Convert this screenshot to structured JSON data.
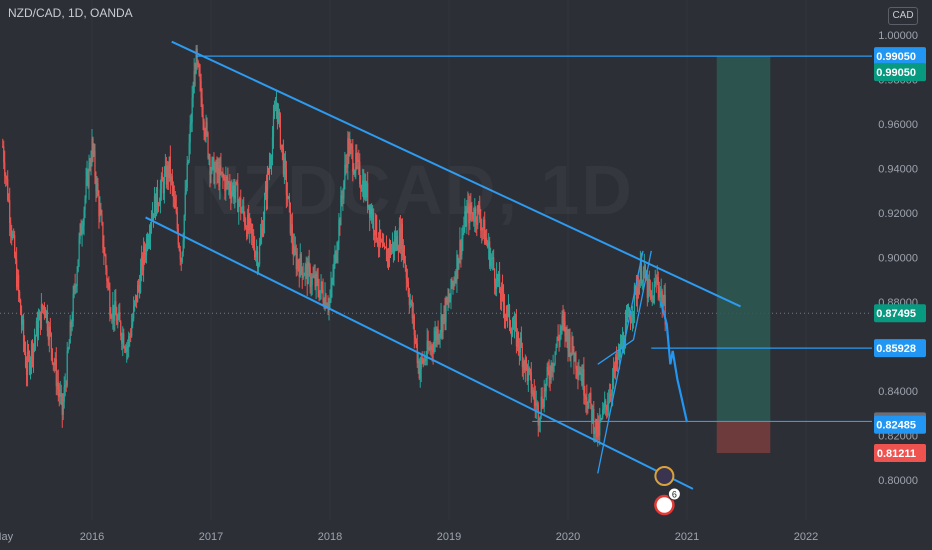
{
  "header": {
    "symbol": "NZD/CAD, 1D, OANDA",
    "currency_button": "CAD"
  },
  "watermark": "NZDCAD, 1D",
  "colors": {
    "background": "#2c2f36",
    "up": "#26a69a",
    "down": "#ef5350",
    "trend": "#2d9bf0",
    "target_zone": "#2e5954",
    "stop_zone": "#7a3d3d",
    "projection": "#2196f3"
  },
  "chart_data": {
    "type": "candlestick",
    "title": "NZD/CAD, 1D, OANDA",
    "ylim": [
      0.795,
      1.005
    ],
    "x_ticks": [
      "May",
      "2016",
      "2017",
      "2018",
      "2019",
      "2020",
      "2021",
      "2022"
    ],
    "y_ticks": [
      "1.00000",
      "0.98000",
      "0.96000",
      "0.94000",
      "0.92000",
      "0.90000",
      "0.88000",
      "0.86000",
      "0.84000",
      "0.82000",
      "0.80000"
    ],
    "price_path": [
      {
        "t": 2015.25,
        "p": 0.95
      },
      {
        "t": 2015.45,
        "p": 0.85
      },
      {
        "t": 2015.6,
        "p": 0.88
      },
      {
        "t": 2015.75,
        "p": 0.83
      },
      {
        "t": 2015.9,
        "p": 0.91
      },
      {
        "t": 2016.0,
        "p": 0.95
      },
      {
        "t": 2016.15,
        "p": 0.88
      },
      {
        "t": 2016.3,
        "p": 0.86
      },
      {
        "t": 2016.5,
        "p": 0.92
      },
      {
        "t": 2016.65,
        "p": 0.94
      },
      {
        "t": 2016.75,
        "p": 0.9
      },
      {
        "t": 2016.87,
        "p": 0.99
      },
      {
        "t": 2017.0,
        "p": 0.94
      },
      {
        "t": 2017.2,
        "p": 0.93
      },
      {
        "t": 2017.4,
        "p": 0.9
      },
      {
        "t": 2017.55,
        "p": 0.97
      },
      {
        "t": 2017.7,
        "p": 0.9
      },
      {
        "t": 2017.85,
        "p": 0.89
      },
      {
        "t": 2018.0,
        "p": 0.88
      },
      {
        "t": 2018.15,
        "p": 0.95
      },
      {
        "t": 2018.3,
        "p": 0.93
      },
      {
        "t": 2018.45,
        "p": 0.9
      },
      {
        "t": 2018.6,
        "p": 0.91
      },
      {
        "t": 2018.75,
        "p": 0.85
      },
      {
        "t": 2018.85,
        "p": 0.86
      },
      {
        "t": 2019.0,
        "p": 0.88
      },
      {
        "t": 2019.15,
        "p": 0.92
      },
      {
        "t": 2019.25,
        "p": 0.92
      },
      {
        "t": 2019.45,
        "p": 0.88
      },
      {
        "t": 2019.6,
        "p": 0.86
      },
      {
        "t": 2019.75,
        "p": 0.83
      },
      {
        "t": 2019.95,
        "p": 0.87
      },
      {
        "t": 2020.1,
        "p": 0.85
      },
      {
        "t": 2020.25,
        "p": 0.82
      },
      {
        "t": 2020.4,
        "p": 0.85
      },
      {
        "t": 2020.55,
        "p": 0.88
      },
      {
        "t": 2020.62,
        "p": 0.895
      },
      {
        "t": 2020.7,
        "p": 0.88
      },
      {
        "t": 2020.75,
        "p": 0.89
      },
      {
        "t": 2020.82,
        "p": 0.875
      }
    ],
    "projection": [
      {
        "t": 2020.78,
        "p": 0.88
      },
      {
        "t": 2020.83,
        "p": 0.87
      },
      {
        "t": 2020.86,
        "p": 0.852
      },
      {
        "t": 2020.88,
        "p": 0.858
      },
      {
        "t": 2020.92,
        "p": 0.845
      },
      {
        "t": 2020.95,
        "p": 0.838
      },
      {
        "t": 2021.0,
        "p": 0.826
      }
    ],
    "channel_lines": [
      {
        "t1": 2016.67,
        "p1": 0.997,
        "t2": 2021.45,
        "p2": 0.878
      },
      {
        "t1": 2016.45,
        "p1": 0.918,
        "t2": 2021.05,
        "p2": 0.796
      }
    ],
    "wedge_lines": [
      {
        "t1": 2020.25,
        "p1": 0.803,
        "t2": 2020.63,
        "p2": 0.903
      },
      {
        "t1": 2020.25,
        "p1": 0.852,
        "t2": 2020.55,
        "p2": 0.863
      },
      {
        "t1": 2020.55,
        "p1": 0.863,
        "t2": 2020.7,
        "p2": 0.903
      }
    ],
    "horizontal_levels": [
      {
        "value": 0.9905,
        "label": "0.99050",
        "from": 2016.87
      },
      {
        "value": 0.85928,
        "label": "0.85928",
        "from": 2020.7
      },
      {
        "value": 0.82633,
        "label": "0.82633",
        "from": 2019.7
      }
    ],
    "price_tags": [
      {
        "value": 0.9905,
        "label": "0.99050",
        "bg": "#2196f3",
        "fg": "#ffffff",
        "y_off": 0
      },
      {
        "value": 0.9905,
        "label": "0.99050",
        "bg": "#089981",
        "fg": "#ffffff",
        "y_off": 16
      },
      {
        "value": 0.87495,
        "label": "0.87495",
        "bg": "#089981",
        "fg": "#ffffff",
        "y_off": 0
      },
      {
        "value": 0.85928,
        "label": "0.85928",
        "bg": "#2196f3",
        "fg": "#ffffff",
        "y_off": 0
      },
      {
        "value": 0.82633,
        "label": "0.82633",
        "bg": "#6b6e77",
        "fg": "#ffffff",
        "y_off": 0
      },
      {
        "value": 0.82485,
        "label": "0.82485",
        "bg": "#2196f3",
        "fg": "#ffffff",
        "y_off": 0
      },
      {
        "value": 0.81211,
        "label": "0.81211",
        "bg": "#ef5350",
        "fg": "#ffffff",
        "y_off": 0
      }
    ],
    "current_price": 0.87495,
    "position": {
      "entry": 0.82633,
      "target": 0.9905,
      "stop": 0.81211,
      "t_start": 2021.25,
      "t_end": 2021.7
    },
    "event_badge": "6"
  }
}
